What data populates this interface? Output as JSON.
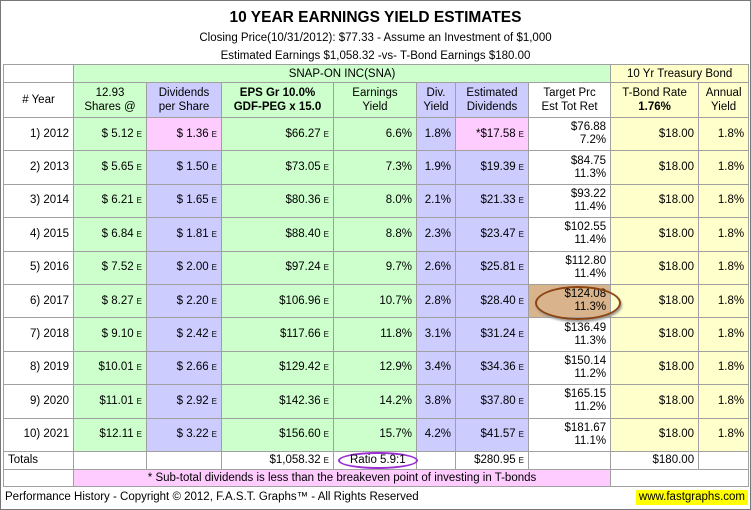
{
  "title": "10 YEAR EARNINGS YIELD ESTIMATES",
  "subtitle_lines": [
    "Closing Price(10/31/2012):  $77.33 - Assume an Investment of $1,000",
    "Estimated Earnings $1,058.32 -vs- T-Bond Earnings $180.00"
  ],
  "group_headers": [
    "SNAP-ON INC(SNA)",
    "10 Yr Treasury Bond"
  ],
  "column_headers": [
    [
      "# Year"
    ],
    [
      "12.93",
      "Shares @"
    ],
    [
      "Dividends",
      "per Share"
    ],
    [
      "EPS Gr  10.0%",
      "GDF-PEG x 15.0"
    ],
    [
      "Earnings",
      "Yield"
    ],
    [
      "Div.",
      "Yield"
    ],
    [
      "Estimated",
      "Dividends"
    ],
    [
      "Target Prc",
      "Est Tot Ret"
    ],
    [
      "T-Bond Rate",
      "1.76%"
    ],
    [
      "Annual",
      "Yield"
    ]
  ],
  "rows": [
    [
      "1) 2012",
      [
        "$ 5.12",
        "E"
      ],
      [
        "$ 1.36",
        "E"
      ],
      [
        "$66.27",
        "E"
      ],
      "6.6%",
      "1.8%",
      [
        "*$17.58",
        "E"
      ],
      [
        "$76.88",
        "7.2%"
      ],
      "$18.00",
      "1.8%"
    ],
    [
      "2) 2013",
      [
        "$ 5.65",
        "E"
      ],
      [
        "$ 1.50",
        "E"
      ],
      [
        "$73.05",
        "E"
      ],
      "7.3%",
      "1.9%",
      [
        "$19.39",
        "E"
      ],
      [
        "$84.75",
        "11.3%"
      ],
      "$18.00",
      "1.8%"
    ],
    [
      "3) 2014",
      [
        "$ 6.21",
        "E"
      ],
      [
        "$ 1.65",
        "E"
      ],
      [
        "$80.36",
        "E"
      ],
      "8.0%",
      "2.1%",
      [
        "$21.33",
        "E"
      ],
      [
        "$93.22",
        "11.4%"
      ],
      "$18.00",
      "1.8%"
    ],
    [
      "4) 2015",
      [
        "$ 6.84",
        "E"
      ],
      [
        "$ 1.81",
        "E"
      ],
      [
        "$88.40",
        "E"
      ],
      "8.8%",
      "2.3%",
      [
        "$23.47",
        "E"
      ],
      [
        "$102.55",
        "11.4%"
      ],
      "$18.00",
      "1.8%"
    ],
    [
      "5) 2016",
      [
        "$ 7.52",
        "E"
      ],
      [
        "$ 2.00",
        "E"
      ],
      [
        "$97.24",
        "E"
      ],
      "9.7%",
      "2.6%",
      [
        "$25.81",
        "E"
      ],
      [
        "$112.80",
        "11.4%"
      ],
      "$18.00",
      "1.8%"
    ],
    [
      "6) 2017",
      [
        "$ 8.27",
        "E"
      ],
      [
        "$ 2.20",
        "E"
      ],
      [
        "$106.96",
        "E"
      ],
      "10.7%",
      "2.8%",
      [
        "$28.40",
        "E"
      ],
      [
        "$124.08",
        "11.3%"
      ],
      "$18.00",
      "1.8%"
    ],
    [
      "7) 2018",
      [
        "$ 9.10",
        "E"
      ],
      [
        "$ 2.42",
        "E"
      ],
      [
        "$117.66",
        "E"
      ],
      "11.8%",
      "3.1%",
      [
        "$31.24",
        "E"
      ],
      [
        "$136.49",
        "11.3%"
      ],
      "$18.00",
      "1.8%"
    ],
    [
      "8) 2019",
      [
        "$10.01",
        "E"
      ],
      [
        "$ 2.66",
        "E"
      ],
      [
        "$129.42",
        "E"
      ],
      "12.9%",
      "3.4%",
      [
        "$34.36",
        "E"
      ],
      [
        "$150.14",
        "11.2%"
      ],
      "$18.00",
      "1.8%"
    ],
    [
      "9) 2020",
      [
        "$11.01",
        "E"
      ],
      [
        "$ 2.92",
        "E"
      ],
      [
        "$142.36",
        "E"
      ],
      "14.2%",
      "3.8%",
      [
        "$37.80",
        "E"
      ],
      [
        "$165.15",
        "11.2%"
      ],
      "$18.00",
      "1.8%"
    ],
    [
      "10) 2021",
      [
        "$12.11",
        "E"
      ],
      [
        "$ 3.22",
        "E"
      ],
      [
        "$156.60",
        "E"
      ],
      "15.7%",
      "4.2%",
      [
        "$41.57",
        "E"
      ],
      [
        "$181.67",
        "11.1%"
      ],
      "$18.00",
      "1.8%"
    ]
  ],
  "totals": {
    "label": "Totals",
    "eps": [
      "$1,058.32",
      "E"
    ],
    "ratio": "Ratio  5.9:1",
    "dividends": [
      "$280.95",
      "E"
    ],
    "tbond": "$180.00"
  },
  "footnote": "* Sub-total dividends is less than the breakeven point of investing in T-bonds",
  "footer": {
    "copyright": "Performance History - Copyright © 2012, F.A.S.T. Graphs™ - All Rights Reserved",
    "website": "www.fastgraphs.com"
  }
}
